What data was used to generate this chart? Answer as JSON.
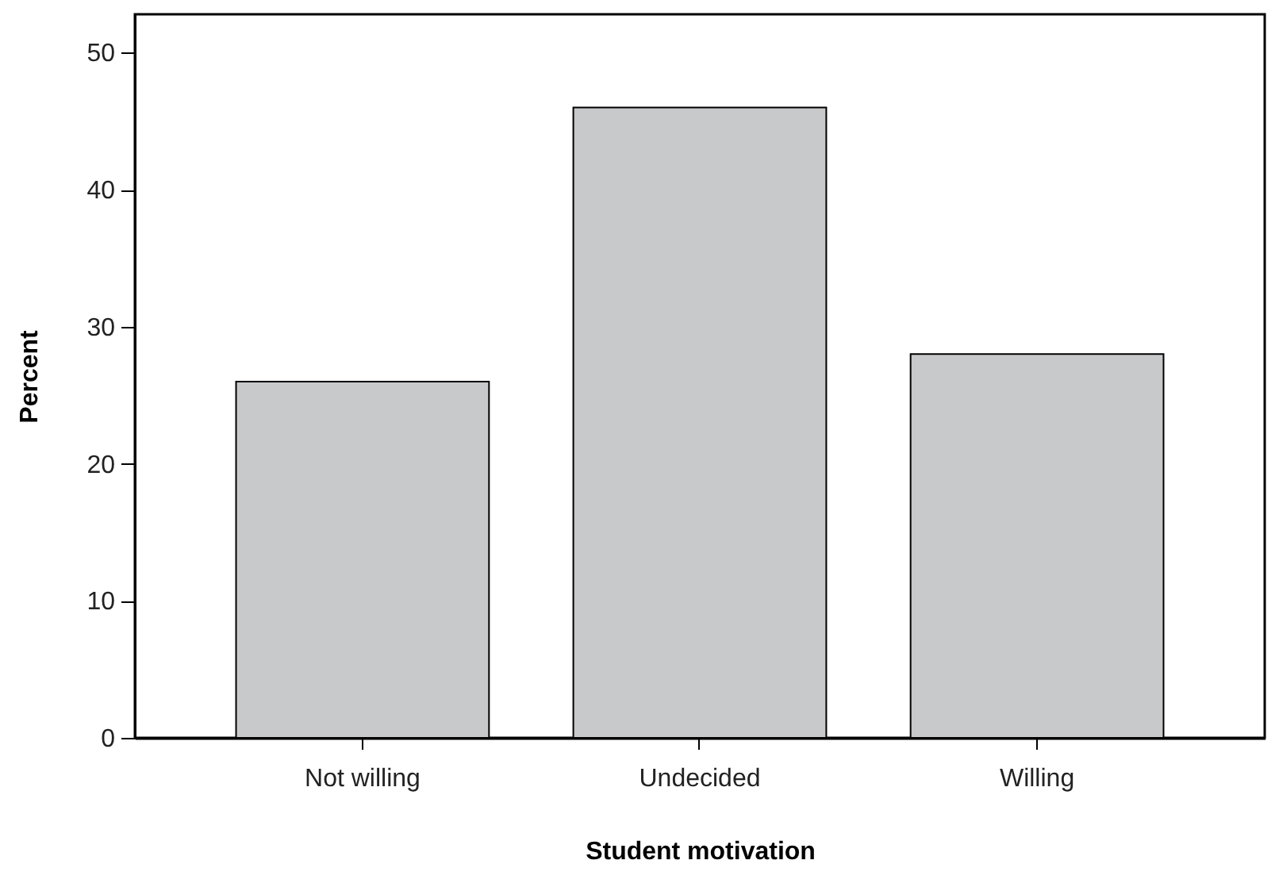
{
  "chart_data": {
    "type": "bar",
    "xlabel": "Student motivation",
    "ylabel": "Percent",
    "categories": [
      "Not willing",
      "Undecided",
      "Willing"
    ],
    "values": [
      26,
      46,
      28
    ],
    "color": "#c8c9cb",
    "ylim": [
      0,
      52.8
    ],
    "yticks": [
      0,
      10,
      20,
      30,
      40,
      50
    ],
    "grid": false
  }
}
